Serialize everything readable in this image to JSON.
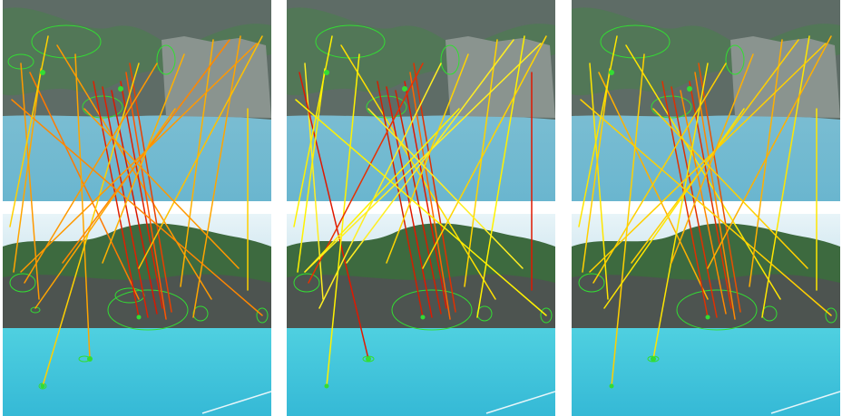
{
  "figure": {
    "panel_count": 3,
    "panels": [
      {
        "id": "left",
        "line_palette": [
          "#ff9900",
          "#ffa500",
          "#ff7a00",
          "#e02000",
          "#ffd000"
        ]
      },
      {
        "id": "middle",
        "line_palette": [
          "#ffee22",
          "#fff200",
          "#ffd400",
          "#e01800",
          "#d12000"
        ]
      },
      {
        "id": "right",
        "line_palette": [
          "#ffe600",
          "#ffd000",
          "#ffb000",
          "#e03000",
          "#ff8800"
        ]
      }
    ],
    "keypoint_color": "#33dd33",
    "water_color": "#48c6dd",
    "cliff_color": "#6b7570"
  }
}
